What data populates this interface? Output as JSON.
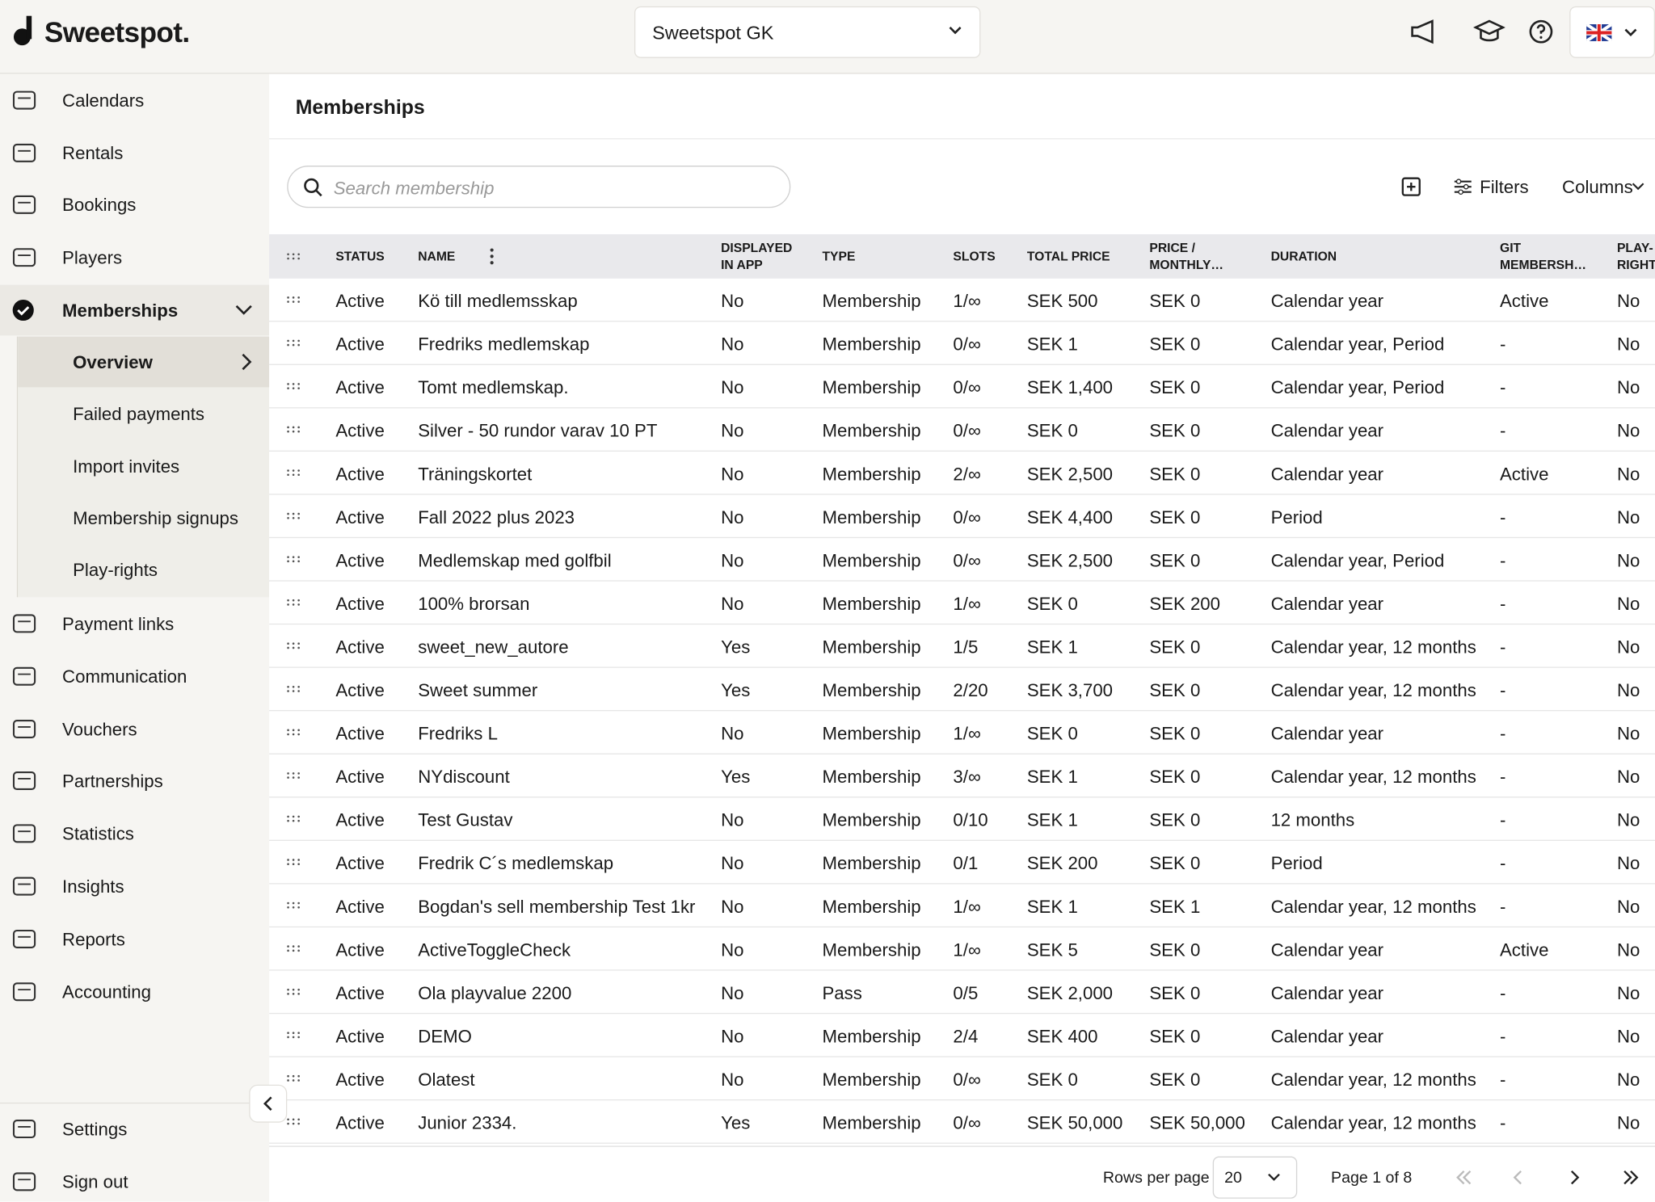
{
  "header": {
    "logo": "Sweetspot.",
    "club": "Sweetspot GK"
  },
  "nav": {
    "top": [
      "Calendars",
      "Rentals",
      "Bookings",
      "Players"
    ],
    "active": "Memberships",
    "sub": [
      "Overview",
      "Failed payments",
      "Import invites",
      "Membership signups",
      "Play-rights"
    ],
    "rest": [
      "Payment links",
      "Communication",
      "Vouchers",
      "Partnerships",
      "Statistics",
      "Insights",
      "Reports",
      "Accounting"
    ],
    "bottom": [
      "Settings",
      "Sign out"
    ]
  },
  "page": {
    "title": "Memberships",
    "search_placeholder": "Search membership",
    "filters": "Filters",
    "columns": "Columns"
  },
  "table": {
    "headers": [
      "STATUS",
      "NAME",
      "DISPLAYED IN APP",
      "TYPE",
      "SLOTS",
      "TOTAL PRICE",
      "PRICE / MONTHLY…",
      "DURATION",
      "GIT MEMBERSH…",
      "PLAY-RIGHT"
    ],
    "rows": [
      [
        "Active",
        "Kö till medlemsskap",
        "No",
        "Membership",
        "1/∞",
        "SEK 500",
        "SEK 0",
        "Calendar year",
        "Active",
        "No"
      ],
      [
        "Active",
        "Fredriks medlemskap",
        "No",
        "Membership",
        "0/∞",
        "SEK 1",
        "SEK 0",
        "Calendar year, Period",
        "-",
        "No"
      ],
      [
        "Active",
        "Tomt medlemskap.",
        "No",
        "Membership",
        "0/∞",
        "SEK 1,400",
        "SEK 0",
        "Calendar year, Period",
        "-",
        "No"
      ],
      [
        "Active",
        "Silver - 50 rundor varav 10 PT",
        "No",
        "Membership",
        "0/∞",
        "SEK 0",
        "SEK 0",
        "Calendar year",
        "-",
        "No"
      ],
      [
        "Active",
        "Träningskortet",
        "No",
        "Membership",
        "2/∞",
        "SEK 2,500",
        "SEK 0",
        "Calendar year",
        "Active",
        "No"
      ],
      [
        "Active",
        "Fall 2022 plus 2023",
        "No",
        "Membership",
        "0/∞",
        "SEK 4,400",
        "SEK 0",
        "Period",
        "-",
        "No"
      ],
      [
        "Active",
        "Medlemskap med golfbil",
        "No",
        "Membership",
        "0/∞",
        "SEK 2,500",
        "SEK 0",
        "Calendar year, Period",
        "-",
        "No"
      ],
      [
        "Active",
        "100% brorsan",
        "No",
        "Membership",
        "1/∞",
        "SEK 0",
        "SEK 200",
        "Calendar year",
        "-",
        "No"
      ],
      [
        "Active",
        "sweet_new_autore",
        "Yes",
        "Membership",
        "1/5",
        "SEK 1",
        "SEK 0",
        "Calendar year, 12 months",
        "-",
        "No"
      ],
      [
        "Active",
        "Sweet summer",
        "Yes",
        "Membership",
        "2/20",
        "SEK 3,700",
        "SEK 0",
        "Calendar year, 12 months",
        "-",
        "No"
      ],
      [
        "Active",
        "Fredriks L",
        "No",
        "Membership",
        "1/∞",
        "SEK 0",
        "SEK 0",
        "Calendar year",
        "-",
        "No"
      ],
      [
        "Active",
        "NYdiscount",
        "Yes",
        "Membership",
        "3/∞",
        "SEK 1",
        "SEK 0",
        "Calendar year, 12 months",
        "-",
        "No"
      ],
      [
        "Active",
        "Test Gustav",
        "No",
        "Membership",
        "0/10",
        "SEK 1",
        "SEK 0",
        "12 months",
        "-",
        "No"
      ],
      [
        "Active",
        "Fredrik C´s medlemskap",
        "No",
        "Membership",
        "0/1",
        "SEK 200",
        "SEK 0",
        "Period",
        "-",
        "No"
      ],
      [
        "Active",
        "Bogdan's sell membership Test 1kr",
        "No",
        "Membership",
        "1/∞",
        "SEK 1",
        "SEK 1",
        "Calendar year, 12 months",
        "-",
        "No"
      ],
      [
        "Active",
        "ActiveToggleCheck",
        "No",
        "Membership",
        "1/∞",
        "SEK 5",
        "SEK 0",
        "Calendar year",
        "Active",
        "No"
      ],
      [
        "Active",
        "Ola playvalue 2200",
        "No",
        "Pass",
        "0/5",
        "SEK 2,000",
        "SEK 0",
        "Calendar year",
        "-",
        "No"
      ],
      [
        "Active",
        "DEMO",
        "No",
        "Membership",
        "2/4",
        "SEK 400",
        "SEK 0",
        "Calendar year",
        "-",
        "No"
      ],
      [
        "Active",
        "Olatest",
        "No",
        "Membership",
        "0/∞",
        "SEK 0",
        "SEK 0",
        "Calendar year, 12 months",
        "-",
        "No"
      ],
      [
        "Active",
        "Junior 2334.",
        "Yes",
        "Membership",
        "0/∞",
        "SEK 50,000",
        "SEK 50,000",
        "Calendar year, 12 months",
        "-",
        "No"
      ]
    ]
  },
  "pagination": {
    "rows_per_page_label": "Rows per page",
    "rows_per_page": 20,
    "page_info": "Page 1 of 8"
  }
}
